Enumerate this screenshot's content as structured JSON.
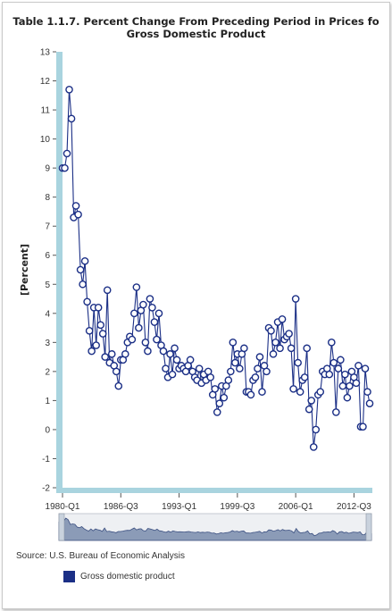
{
  "colors": {
    "series": "#1b2f86",
    "axis_band": "#a9d4df",
    "navigator_fill": "#6a7fa3"
  },
  "chart_data": {
    "type": "line",
    "title_line1": "Table 1.1.7. Percent Change From Preceding Period in Prices fo",
    "title_line2": "Gross Domestic Product",
    "ylabel": "[Percent]",
    "xlabel": "",
    "ylim": [
      -2,
      13
    ],
    "yticks": [
      "-2",
      "-1",
      "0",
      "1",
      "2",
      "3",
      "4",
      "5",
      "6",
      "7",
      "8",
      "9",
      "10",
      "11",
      "12",
      "13"
    ],
    "xticks": [
      "1980-Q1",
      "1986-Q3",
      "1993-Q1",
      "1999-Q3",
      "2006-Q1",
      "2012-Q3"
    ],
    "grid": false,
    "legend_position": "bottom-left",
    "series": [
      {
        "name": "Gross domestic product",
        "values": [
          9.0,
          9.0,
          9.5,
          11.7,
          10.7,
          7.3,
          7.7,
          7.4,
          5.5,
          5.0,
          5.8,
          4.4,
          3.4,
          2.7,
          4.2,
          2.9,
          4.2,
          3.6,
          3.3,
          2.5,
          4.8,
          2.3,
          2.6,
          2.2,
          2.0,
          1.5,
          2.4,
          2.4,
          2.6,
          3.0,
          3.2,
          3.1,
          4.0,
          4.9,
          3.5,
          4.1,
          4.3,
          3.0,
          2.7,
          4.5,
          4.2,
          3.7,
          3.1,
          4.0,
          2.9,
          2.7,
          2.1,
          1.8,
          2.6,
          1.9,
          2.8,
          2.4,
          2.1,
          2.2,
          2.1,
          2.0,
          2.2,
          2.4,
          2.0,
          1.8,
          1.7,
          2.1,
          1.6,
          1.9,
          1.7,
          2.0,
          1.8,
          1.2,
          1.4,
          0.6,
          0.9,
          1.5,
          1.1,
          1.5,
          1.7,
          2.0,
          3.0,
          2.3,
          2.6,
          2.1,
          2.6,
          2.8,
          1.3,
          1.3,
          1.2,
          1.7,
          1.8,
          2.1,
          2.5,
          1.3,
          2.2,
          2.0,
          3.5,
          3.4,
          2.6,
          3.0,
          3.7,
          2.8,
          3.8,
          3.1,
          3.2,
          3.3,
          2.8,
          1.4,
          4.5,
          2.3,
          1.3,
          1.7,
          1.8,
          2.8,
          0.7,
          1.0,
          -0.6,
          0.0,
          1.2,
          1.3,
          2.0,
          1.9,
          2.1,
          1.9,
          3.0,
          2.3,
          0.6,
          2.1,
          2.4,
          1.5,
          1.9,
          1.1,
          1.5,
          2.0,
          1.8,
          1.6,
          2.2,
          0.1,
          0.1,
          2.1,
          1.3,
          0.9
        ]
      }
    ]
  }
}
